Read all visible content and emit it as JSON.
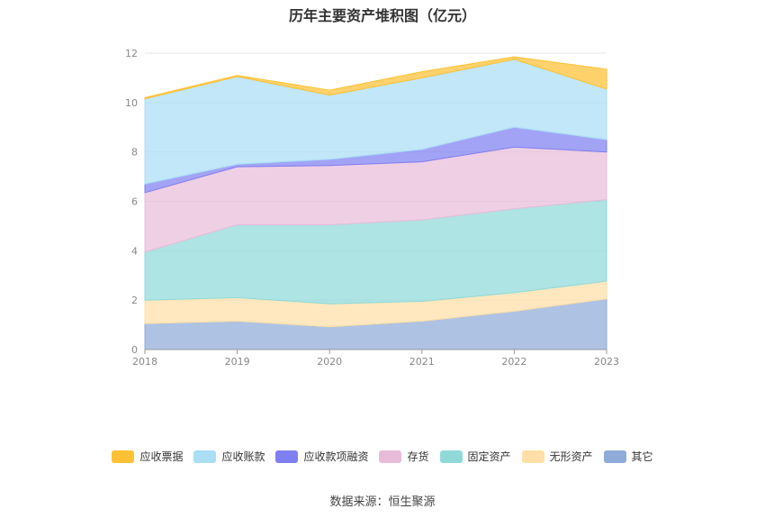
{
  "title": "历年主要资产堆积图（亿元）",
  "source": "数据来源：恒生聚源",
  "chart_data": {
    "type": "area",
    "stacked": true,
    "categories": [
      "2018",
      "2019",
      "2020",
      "2021",
      "2022",
      "2023"
    ],
    "ylim": [
      0,
      12
    ],
    "yticks": [
      "0",
      "2",
      "4",
      "6",
      "8",
      "10",
      "12"
    ],
    "grid": true,
    "legend_position": "bottom",
    "series": [
      {
        "name": "其它",
        "color": "#8fabd9",
        "values": [
          1.05,
          1.15,
          0.92,
          1.15,
          1.55,
          2.05
        ]
      },
      {
        "name": "无形资产",
        "color": "#ffdfa6",
        "values": [
          0.95,
          0.95,
          0.93,
          0.8,
          0.75,
          0.72
        ]
      },
      {
        "name": "固定资产",
        "color": "#8fdad9",
        "values": [
          1.95,
          2.95,
          3.2,
          3.3,
          3.4,
          3.3
        ]
      },
      {
        "name": "存货",
        "color": "#e8bcd9",
        "values": [
          2.4,
          2.35,
          2.4,
          2.35,
          2.5,
          1.93
        ]
      },
      {
        "name": "应收款项融资",
        "color": "#7f7ff2",
        "values": [
          0.35,
          0.1,
          0.25,
          0.5,
          0.8,
          0.5
        ]
      },
      {
        "name": "应收账款",
        "color": "#a9def5",
        "values": [
          3.45,
          3.55,
          2.6,
          2.9,
          2.75,
          2.05
        ]
      },
      {
        "name": "应收票据",
        "color": "#ffc133",
        "values": [
          0.05,
          0.05,
          0.2,
          0.25,
          0.1,
          0.8
        ]
      }
    ],
    "legend_order": [
      "应收票据",
      "应收账款",
      "应收款项融资",
      "存货",
      "固定资产",
      "无形资产",
      "其它"
    ]
  }
}
